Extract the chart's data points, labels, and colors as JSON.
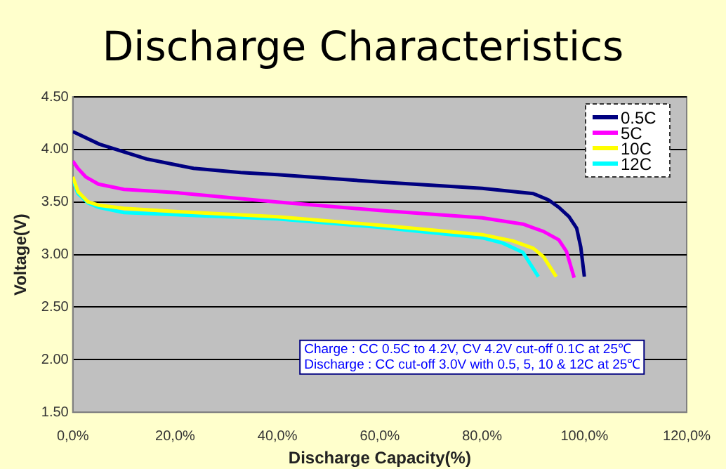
{
  "chart_data": {
    "type": "line",
    "title": "Discharge Characteristics",
    "xlabel": "Discharge Capacity(%)",
    "ylabel": "Voltage(V)",
    "xlim": [
      0,
      120
    ],
    "xticks": [
      {
        "value": 0,
        "label": "0,0%"
      },
      {
        "value": 20,
        "label": "20,0%"
      },
      {
        "value": 40,
        "label": "40,0%"
      },
      {
        "value": 60,
        "label": "60,0%"
      },
      {
        "value": 80,
        "label": "80,0%"
      },
      {
        "value": 100,
        "label": "100,0%"
      },
      {
        "value": 120,
        "label": "120,0%"
      }
    ],
    "ylim": [
      1.5,
      4.5
    ],
    "yticks": [
      {
        "value": 1.5,
        "label": "1.50"
      },
      {
        "value": 2,
        "label": "2.00"
      },
      {
        "value": 2.5,
        "label": "2.50"
      },
      {
        "value": 3,
        "label": "3.00"
      },
      {
        "value": 3.5,
        "label": "3.50"
      },
      {
        "value": 4,
        "label": "4.00"
      },
      {
        "value": 4.5,
        "label": "4.50"
      }
    ],
    "grid": "y",
    "legend": "top right",
    "marker": "none",
    "line_style": "solid",
    "annotations": [
      "Charge : CC 0.5C to 4.2V, CV 4.2V cut-off 0.1C at 25℃",
      "Discharge : CC cut-off 3.0V with 0.5, 5, 10 & 12C at 25℃"
    ],
    "series": [
      {
        "name": "0.5C",
        "color": "#000080",
        "x": [
          0,
          5.2,
          14.4,
          23.6,
          32.8,
          40,
          60,
          80,
          90,
          93,
          95,
          97,
          98.5,
          99.3,
          100
        ],
        "values": [
          4.17,
          4.05,
          3.91,
          3.82,
          3.78,
          3.76,
          3.69,
          3.63,
          3.58,
          3.52,
          3.45,
          3.36,
          3.25,
          3.07,
          2.79
        ]
      },
      {
        "name": "5C",
        "color": "#ff00ff",
        "x": [
          0,
          1,
          2.5,
          5,
          10,
          20,
          40,
          60,
          80,
          88,
          92,
          95,
          96.5,
          98
        ],
        "values": [
          3.89,
          3.82,
          3.74,
          3.67,
          3.62,
          3.59,
          3.5,
          3.42,
          3.35,
          3.29,
          3.22,
          3.14,
          3.03,
          2.78
        ]
      },
      {
        "name": "10C",
        "color": "#ffff00",
        "x": [
          0,
          1,
          3,
          5,
          10,
          20,
          40,
          60,
          80,
          86,
          90,
          92,
          94.5
        ],
        "values": [
          3.74,
          3.6,
          3.5,
          3.47,
          3.44,
          3.41,
          3.36,
          3.28,
          3.19,
          3.13,
          3.06,
          2.98,
          2.79
        ]
      },
      {
        "name": "12C",
        "color": "#00ffff",
        "x": [
          0,
          1,
          3,
          5,
          10,
          20,
          40,
          60,
          80,
          84,
          88,
          91
        ],
        "values": [
          3.71,
          3.58,
          3.49,
          3.45,
          3.4,
          3.38,
          3.34,
          3.26,
          3.16,
          3.11,
          3.02,
          2.79
        ]
      }
    ]
  }
}
